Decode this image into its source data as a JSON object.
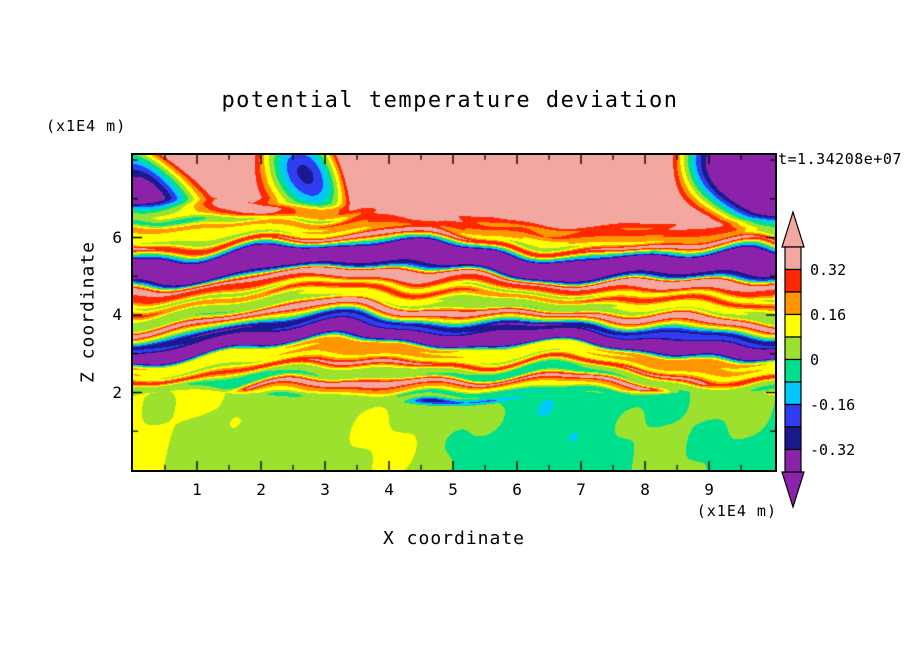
{
  "title": "potential temperature deviation",
  "time_label": "t=1.34208e+07",
  "axes": {
    "x": {
      "label": "X coordinate",
      "units_label": "(x1E4 m)",
      "tick_labels": [
        "1",
        "2",
        "3",
        "4",
        "5",
        "6",
        "7",
        "8",
        "9"
      ]
    },
    "z": {
      "label": "Z coordinate",
      "units_label": "(x1E4 m)",
      "tick_labels": [
        "2",
        "4",
        "6"
      ]
    }
  },
  "chart_data": {
    "type": "heatmap",
    "title": "potential temperature deviation",
    "xlabel": "X coordinate",
    "ylabel": "Z coordinate",
    "x_units": "(x1E4 m)",
    "y_units": "(x1E4 m)",
    "time_annotation": "t=1.34208e+07",
    "xlim": [
      0,
      10.03
    ],
    "ylim": [
      0,
      8.13
    ],
    "x_ticks": [
      1,
      2,
      3,
      4,
      5,
      6,
      7,
      8,
      9
    ],
    "x_minor_ticks": [
      0.5,
      1.5,
      2.5,
      3.5,
      4.5,
      5.5,
      6.5,
      7.5,
      8.5,
      9.5
    ],
    "y_ticks": [
      2,
      4,
      6
    ],
    "y_minor_ticks": [
      1,
      3,
      5,
      7,
      8
    ],
    "contour_interval": 0.08,
    "levels": [
      -0.4,
      -0.32,
      -0.24,
      -0.16,
      -0.08,
      0,
      0.08,
      0.16,
      0.24,
      0.32,
      0.4
    ],
    "band_colors": [
      "#8C22AA",
      "#1A1A8E",
      "#2F3CF0",
      "#00C8FF",
      "#00E08C",
      "#9CE12E",
      "#FFFF00",
      "#FF9600",
      "#FF2800",
      "#F2A7A0"
    ],
    "under_color": "#8C22AA",
    "over_color": "#F2A7A0",
    "colorbar_tick_labels": [
      "0.32",
      "0.16",
      "0",
      "-0.16",
      "-0.32"
    ],
    "field_summary": "Stratified turbulence field: near-zero deviation (two green bands) below z=2; thin strongly-mixed alternating layers spanning the full -0.32..0.32 range between z=2 and z=6; predominantly above 0.32 (salmon) near the top with isolated patches below -0.32 (purple) and dark-blue streaks."
  }
}
